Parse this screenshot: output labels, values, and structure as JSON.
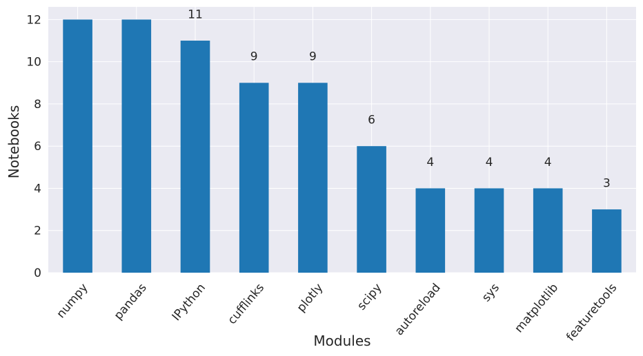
{
  "chart_data": {
    "type": "bar",
    "categories": [
      "numpy",
      "pandas",
      "IPython",
      "cufflinks",
      "plotly",
      "scipy",
      "autoreload",
      "sys",
      "matplotlib",
      "featuretools"
    ],
    "values": [
      12,
      12,
      11,
      9,
      9,
      6,
      4,
      4,
      4,
      3
    ],
    "data_labels": [
      "",
      "",
      "11",
      "9",
      "9",
      "6",
      "4",
      "4",
      "4",
      "3"
    ],
    "xlabel": "Modules",
    "ylabel": "Notebooks",
    "ylim": [
      0,
      12.6
    ],
    "yticks": [
      0,
      2,
      4,
      6,
      8,
      10,
      12
    ],
    "grid": true,
    "colors": {
      "bar": "#1f77b4",
      "background": "#eaeaf2",
      "grid": "#ffffff",
      "text": "#262626"
    }
  }
}
